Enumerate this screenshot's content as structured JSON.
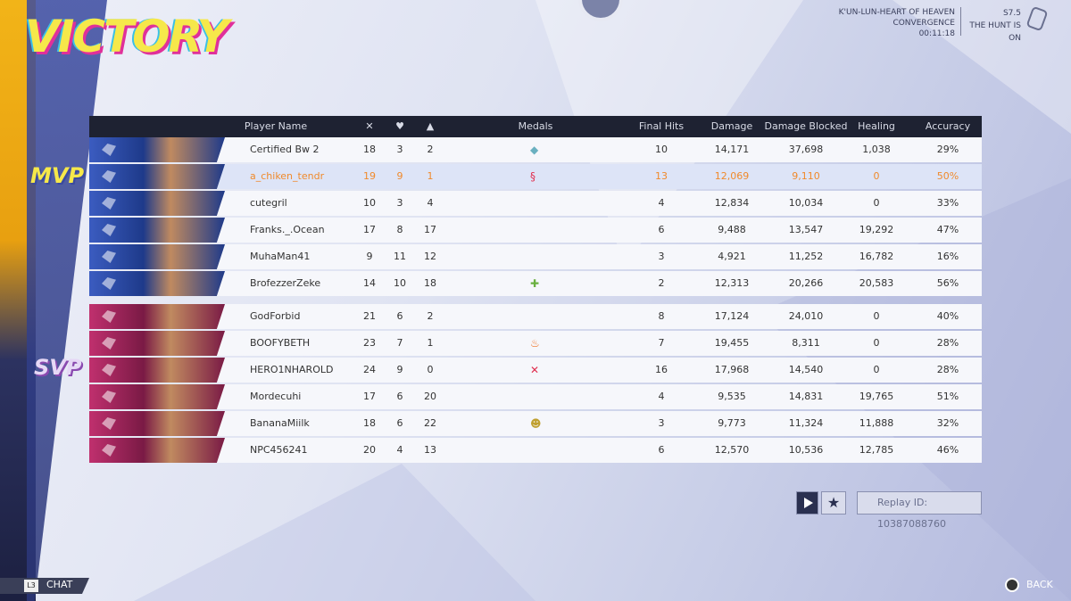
{
  "header": {
    "title": "VICTORY",
    "map": "K'UN-LUN-HEART OF HEAVEN",
    "mode": "CONVERGENCE",
    "time": "00:11:18",
    "season": "S7.5",
    "season_name": "THE HUNT IS ON"
  },
  "table": {
    "columns": {
      "name": "Player Name",
      "medals": "Medals",
      "final_hits": "Final Hits",
      "damage": "Damage",
      "blocked": "Damage Blocked",
      "healing": "Healing",
      "accuracy": "Accuracy"
    },
    "teams": [
      {
        "badge": "MVP",
        "rows": [
          [
            "Certified Bw 2",
            "18",
            "3",
            "2",
            "10",
            "14,171",
            "37,698",
            "1,038",
            "29%"
          ],
          [
            "a_chiken_tendr",
            "19",
            "9",
            "1",
            "13",
            "12,069",
            "9,110",
            "0",
            "50%"
          ],
          [
            "cutegril",
            "10",
            "3",
            "4",
            "4",
            "12,834",
            "10,034",
            "0",
            "33%"
          ],
          [
            "Franks._.Ocean",
            "17",
            "8",
            "17",
            "6",
            "9,488",
            "13,547",
            "19,292",
            "47%"
          ],
          [
            "MuhaMan41",
            "9",
            "11",
            "12",
            "3",
            "4,921",
            "11,252",
            "16,782",
            "16%"
          ],
          [
            "BrofezzerZeke",
            "14",
            "10",
            "18",
            "2",
            "12,313",
            "20,266",
            "20,583",
            "56%"
          ]
        ]
      },
      {
        "badge": "SVP",
        "rows": [
          [
            "GodForbid",
            "21",
            "6",
            "2",
            "8",
            "17,124",
            "24,010",
            "0",
            "40%"
          ],
          [
            "BOOFYBETH",
            "23",
            "7",
            "1",
            "7",
            "19,455",
            "8,311",
            "0",
            "28%"
          ],
          [
            "HERO1NHAROLD",
            "24",
            "9",
            "0",
            "16",
            "17,968",
            "14,540",
            "0",
            "28%"
          ],
          [
            "Mordecuhi",
            "17",
            "6",
            "20",
            "4",
            "9,535",
            "14,831",
            "19,765",
            "51%"
          ],
          [
            "BananaMiilk",
            "18",
            "6",
            "22",
            "3",
            "9,773",
            "11,324",
            "11,888",
            "32%"
          ],
          [
            "NPC456241",
            "20",
            "4",
            "13",
            "6",
            "12,570",
            "10,536",
            "12,785",
            "46%"
          ]
        ]
      }
    ]
  },
  "footer": {
    "replay": "Replay ID: 10387088760",
    "chat_key": "L3",
    "chat": "CHAT",
    "back": "BACK"
  }
}
